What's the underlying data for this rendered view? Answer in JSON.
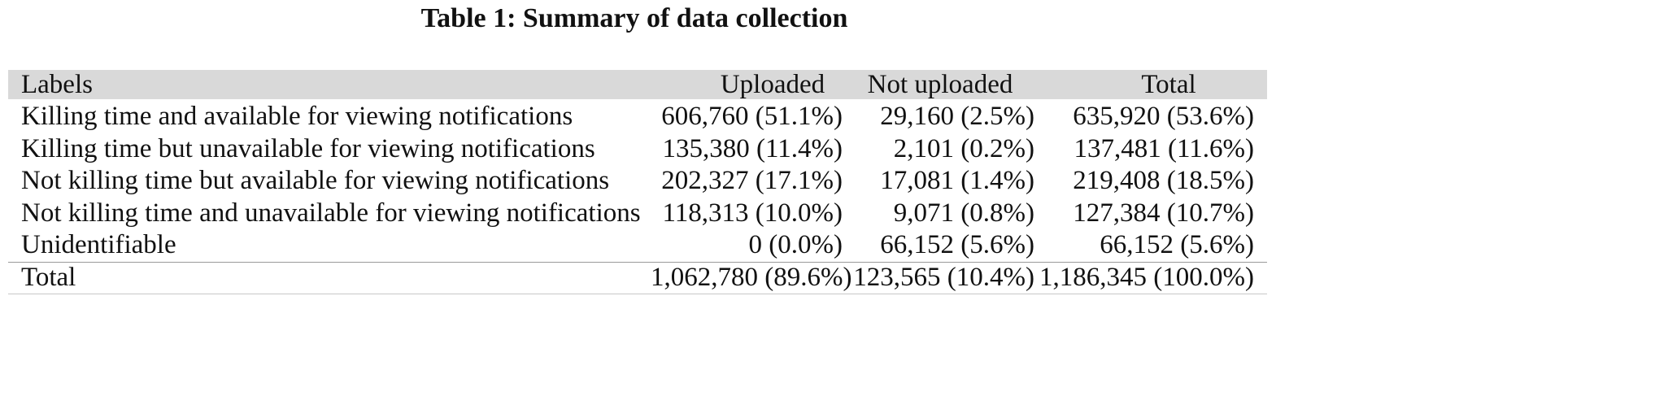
{
  "caption": "Table 1: Summary of data collection",
  "table": {
    "headers": [
      "Labels",
      "Uploaded",
      "Not uploaded",
      "Total"
    ],
    "rows": [
      {
        "label": "Killing time and available for viewing notifications",
        "uploaded": "606,760 (51.1%)",
        "not_uploaded": "29,160 (2.5%)",
        "total": "635,920 (53.6%)"
      },
      {
        "label": "Killing time but unavailable for viewing notifications",
        "uploaded": "135,380 (11.4%)",
        "not_uploaded": "2,101 (0.2%)",
        "total": "137,481 (11.6%)"
      },
      {
        "label": "Not killing time but available for viewing notifications",
        "uploaded": "202,327 (17.1%)",
        "not_uploaded": "17,081 (1.4%)",
        "total": "219,408 (18.5%)"
      },
      {
        "label": "Not killing time and unavailable for viewing notifications",
        "uploaded": "118,313 (10.0%)",
        "not_uploaded": "9,071 (0.8%)",
        "total": "127,384 (10.7%)"
      },
      {
        "label": "Unidentifiable",
        "uploaded": "0 (0.0%)",
        "not_uploaded": "66,152 (5.6%)",
        "total": "66,152 (5.6%)"
      }
    ],
    "total_row": {
      "label": "Total",
      "uploaded": "1,062,780 (89.6%)",
      "not_uploaded": "123,565 (10.4%)",
      "total": "1,186,345 (100.0%)"
    }
  }
}
